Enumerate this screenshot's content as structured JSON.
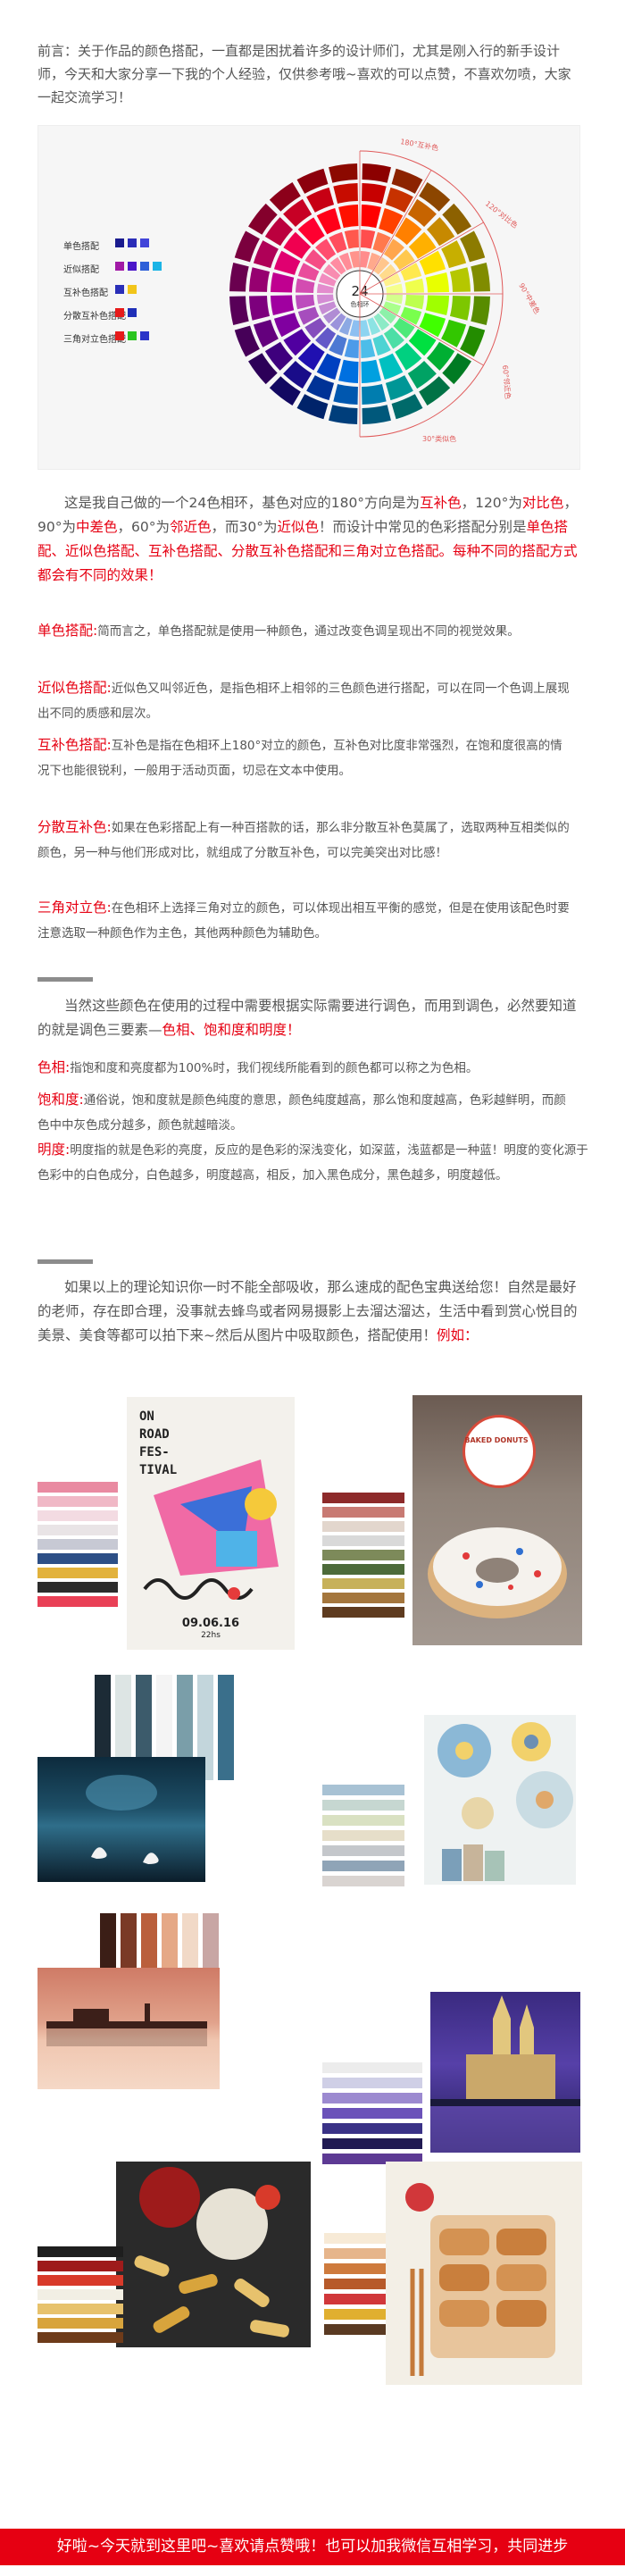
{
  "intro": "前言：关于作品的颜色搭配，一直都是困扰着许多的设计师们，尤其是刚入行的新手设计师，今天和大家分享一下我的个人经验，仅供参考哦~喜欢的可以点赞，不喜欢勿喷，大家一起交流学习！",
  "wheel": {
    "center_label": "24",
    "center_sub": "色相环",
    "legend": [
      "单色搭配",
      "近似搭配",
      "互补色搭配",
      "分散互补色搭配",
      "三角对立色搭配"
    ],
    "arc_labels": [
      "180°互补色",
      "120°对比色",
      "90°中差色",
      "60°邻近色",
      "30°类似色"
    ],
    "colors": [
      "#ff0000",
      "#ff4000",
      "#ff8000",
      "#ffb000",
      "#ffe000",
      "#e8ff00",
      "#a0ff00",
      "#40ff00",
      "#00e040",
      "#00d080",
      "#00c0c0",
      "#00a0e0",
      "#0070e0",
      "#0040c0",
      "#2010b0",
      "#5000a0",
      "#8000a0",
      "#a000a0",
      "#c00090",
      "#e00070",
      "#f00050",
      "#ff0030",
      "#ff0018",
      "#ff1000"
    ]
  },
  "desc": {
    "p1": "这是我自己做的一个24色相环，基色对应的180°方向是为",
    "t1": "互补色",
    "p2": "，120°为",
    "t2": "对比色",
    "p3": "，90°为",
    "t3": "中差色",
    "p4": "，60°为",
    "t4": "邻近色",
    "p5": "，而30°为",
    "t5": "近似色",
    "p6": "！而设计中常见的色彩搭配分别是",
    "t6": "单色搭配、近似色搭配、互补色搭配、分散互补色搭配和三角对立色搭配。每种不同的搭配方式都会有不同的效果！"
  },
  "terms": [
    {
      "k": "单色搭配:",
      "v": "简而言之，单色搭配就是使用一种颜色，通过改变色调呈现出不同的视觉效果。"
    },
    {
      "k": "近似色搭配:",
      "v": "近似色又叫邻近色，是指色相环上相邻的三色颜色进行搭配，可以在同一个色调上展现出不同的质感和层次。"
    },
    {
      "k": "互补色搭配:",
      "v": "互补色是指在色相环上180°对立的颜色，互补色对比度非常强烈，在饱和度很高的情况下也能很锐利，一般用于活动页面，切忌在文本中使用。"
    },
    {
      "k": "分散互补色:",
      "v": "如果在色彩搭配上有一种百搭款的话，那么非分散互补色莫属了，选取两种互相类似的颜色，另一种与他们形成对比，就组成了分散互补色，可以完美突出对比感！"
    },
    {
      "k": "三角对立色:",
      "v": "在色相环上选择三角对立的颜色，可以体现出相互平衡的感觉，但是在使用该配色时要注意选取一种颜色作为主色，其他两种颜色为辅助色。"
    }
  ],
  "sec2": {
    "p1": "当然这些颜色在使用的过程中需要根据实际需要进行调色，而用到调色，必然要知道的就是调色三要素—",
    "t1": "色相、饱和度和明度！"
  },
  "terms2": [
    {
      "k": "色相:",
      "v": "指饱和度和亮度都为100%时，我们视线所能看到的颜色都可以称之为色相。"
    },
    {
      "k": "饱和度:",
      "v": "通俗说，饱和度就是颜色纯度的意思，颜色纯度越高，那么饱和度越高，色彩越鲜明，而颜色中中灰色成分越多，颜色就越暗淡。"
    },
    {
      "k": "明度:",
      "v": "明度指的就是色彩的亮度，反应的是色彩的深浅变化，如深蓝，浅蓝都是一种蓝！明度的变化源于色彩中的白色成分，白色越多，明度越高，相反，加入黑色成分，黑色越多，明度越低。"
    }
  ],
  "sec3": {
    "p1": "如果以上的理论知识你一时不能全部吸收，那么速成的配色宝典送给您！自然是最好的老师，存在即合理，没事就去蜂鸟或者网易摄影上去溜达溜达，生活中看到赏心悦目的美景、美食等都可以拍下来~然后从图片中吸取颜色，搭配使用！",
    "t1": "例如："
  },
  "poster": {
    "line1": "ON",
    "line2": "ROAD",
    "line3": "FES-",
    "line4": "TIVAL",
    "date": "09.06.16",
    "time": "22hs"
  },
  "donut_label": "BAKED DONUTS",
  "palettes": {
    "p1": [
      "#e98aa1",
      "#f0b8c6",
      "#f3dbe2",
      "#e9e4e6",
      "#c7c9d4",
      "#2d4f86",
      "#e2b23c",
      "#2b2b2b",
      "#e94056"
    ],
    "p2": [
      "#8d2a2a",
      "#c87a73",
      "#e2d6cd",
      "#d9d9d9",
      "#7d8a5a",
      "#4d6b3a",
      "#c7b15a",
      "#a4763d",
      "#5e3b1f"
    ],
    "p3": [
      "#1c2b36",
      "#dde5e4",
      "#3c5b6b",
      "#f4f4f4",
      "#7a9ea9",
      "#c3d6dc",
      "#3a6f8b"
    ],
    "p4": [
      "#a8c2d4",
      "#c6d7d1",
      "#d9e1c2",
      "#e6dec9",
      "#c4c7cb",
      "#8fa4b7",
      "#d9d4d1"
    ],
    "p5": [
      "#3b1e16",
      "#7a3a26",
      "#ba5f3c",
      "#e5a886",
      "#f1d9c7",
      "#c8a6a4"
    ],
    "p6": [
      "#ececec",
      "#cfcfe6",
      "#9c8ad0",
      "#6b52b9",
      "#3a3287",
      "#201a52",
      "#5d3a94"
    ],
    "p7": [
      "#1e1e1e",
      "#9e1b1b",
      "#d83a2a",
      "#f2efe4",
      "#e7c26d",
      "#d8a43c",
      "#6e3b1a"
    ],
    "p8": [
      "#f7ead6",
      "#e6b58b",
      "#ce7b3e",
      "#b75a2a",
      "#d1373a",
      "#e0af2f",
      "#5a3a22"
    ]
  },
  "footer": "好啦~今天就到这里吧~喜欢请点赞哦！也可以加我微信互相学习，共同进步"
}
